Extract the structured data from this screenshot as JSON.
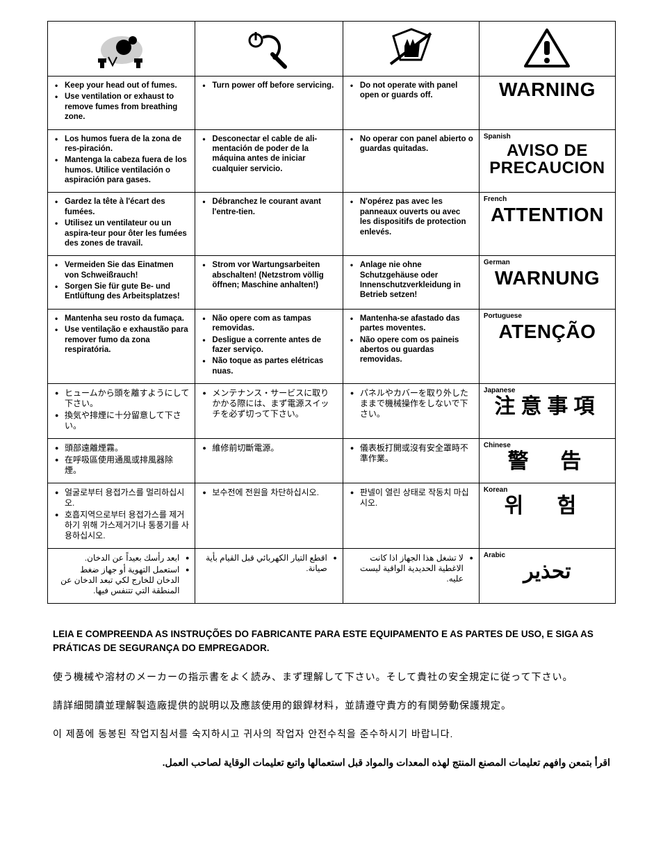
{
  "icons": {
    "fumes": "fumes-head-icon",
    "service": "power-off-service-icon",
    "panel": "hand-guard-icon",
    "warning": "warning-triangle-icon"
  },
  "rows": [
    {
      "lang_tag": "",
      "cjk": false,
      "ar": false,
      "col1": [
        "Keep your head out of fumes.",
        "Use ventilation or exhaust to remove fumes from breathing zone."
      ],
      "col2": [
        "Turn power off before servicing."
      ],
      "col3": [
        "Do not operate with panel open or guards off."
      ],
      "warn_class": "lg",
      "warn_text": "WARNING"
    },
    {
      "lang_tag": "Spanish",
      "cjk": false,
      "ar": false,
      "col1": [
        "Los humos fuera de la zona de res-piración.",
        "Mantenga la cabeza fuera de los humos. Utilice ventilación o aspiración para gases."
      ],
      "col2": [
        "Desconectar el cable de ali-mentación de poder de la máquina antes de iniciar cualquier servicio."
      ],
      "col3": [
        "No operar con panel abierto o guardas quitadas."
      ],
      "warn_class": "md",
      "warn_text": "AVISO DE PRECAUCION"
    },
    {
      "lang_tag": "French",
      "cjk": false,
      "ar": false,
      "col1": [
        "Gardez la tête à l'écart des fumées.",
        "Utilisez un ventilateur ou un aspira-teur pour ôter les fumées des zones de travail."
      ],
      "col2": [
        "Débranchez le courant avant l'entre-tien."
      ],
      "col3": [
        "N'opérez pas avec les panneaux ouverts ou avec les dispositifs de protection enlevés."
      ],
      "warn_class": "lg",
      "warn_text": "ATTENTION"
    },
    {
      "lang_tag": "German",
      "cjk": false,
      "ar": false,
      "col1": [
        "Vermeiden Sie das Einatmen von Schweißrauch!",
        "Sorgen Sie für gute Be- und Entlüftung des Arbeitsplatzes!"
      ],
      "col2": [
        "Strom vor Wartungsarbeiten abschalten! (Netzstrom völlig öffnen; Maschine anhalten!)"
      ],
      "col3": [
        "Anlage nie ohne Schutzgehäuse oder Innenschutzverkleidung in Betrieb setzen!"
      ],
      "warn_class": "lg",
      "warn_text": "WARNUNG"
    },
    {
      "lang_tag": "Portuguese",
      "cjk": false,
      "ar": false,
      "col1": [
        "Mantenha seu rosto da fumaça.",
        "Use ventilação e exhaustão para remover fumo da zona respiratória."
      ],
      "col2": [
        "Não opere com as tampas removidas.",
        "Desligue a corrente antes de fazer serviço.",
        "Não toque as partes elétricas nuas."
      ],
      "col3": [
        "Mantenha-se afastado das partes moventes.",
        "Não opere com os paineis abertos ou guardas removidas."
      ],
      "warn_class": "lg",
      "warn_text": "ATENÇÃO"
    },
    {
      "lang_tag": "Japanese",
      "cjk": true,
      "ar": false,
      "col1": [
        "ヒュームから頭を離すようにして下さい。",
        "換気や排煙に十分留意して下さい。"
      ],
      "col2": [
        "メンテナンス・サービスに取りかかる際には、まず電源スイッチを必ず切って下さい。"
      ],
      "col3": [
        "パネルやカバーを取り外したままで機械操作をしないで下さい。"
      ],
      "warn_class": "cjk",
      "warn_text": "注意事項"
    },
    {
      "lang_tag": "Chinese",
      "cjk": true,
      "ar": false,
      "col1": [
        "頭部遠離煙霧。",
        "在呼吸區使用通風或排風器除煙。"
      ],
      "col2": [
        "維修前切斷電源。"
      ],
      "col3": [
        "儀表板打開或沒有安全罩時不準作業。"
      ],
      "warn_class": "cjk",
      "warn_text": "警　告"
    },
    {
      "lang_tag": "Korean",
      "cjk": true,
      "ar": false,
      "col1": [
        "얼굴로부터 용접가스를 멀리하십시오.",
        "호흡지역으로부터 용접가스를 제거하기 위해 가스제거기나 통풍기를 사용하십시오."
      ],
      "col2": [
        "보수전에 전원을 차단하십시오."
      ],
      "col3": [
        "판넬이 열린 상태로 작동치 마십시오."
      ],
      "warn_class": "ko",
      "warn_text": "위 험"
    },
    {
      "lang_tag": "Arabic",
      "cjk": false,
      "ar": true,
      "col1": [
        "ابعد رأسك بعيداً عن الدخان.",
        "استعمل التهوية أو جهاز ضغط الدخان للخارج لكي تبعد الدخان عن المنطقة التي تتنفس فيها."
      ],
      "col2": [
        "اقطع التيار الكهربائي قبل القيام بأية صيانة."
      ],
      "col3": [
        "لا تشغل هذا الجهاز اذا كانت الاغطية الحديدية الواقية ليست عليه."
      ],
      "warn_class": "ar",
      "warn_text": "تحذير"
    }
  ],
  "footer": [
    {
      "class": "",
      "text": "LEIA E COMPREENDA AS INSTRUÇÕES DO FABRICANTE PARA ESTE EQUIPAMENTO E AS PARTES DE USO, E SIGA AS PRÁTICAS DE SEGURANÇA DO EMPREGADOR."
    },
    {
      "class": "cjk",
      "text": "使う機械や溶材のメーカーの指示書をよく読み、まず理解して下さい。そして貴社の安全規定に従って下さい。"
    },
    {
      "class": "cjk",
      "text": "請詳細閱讀並理解製造廠提供的説明以及應該使用的銀銲材料，並請遵守貴方的有関勞動保護規定。"
    },
    {
      "class": "cjk",
      "text": "이 제품에 동봉된 작업지침서를 숙지하시고 귀사의 작업자 안전수칙을 준수하시기 바랍니다."
    },
    {
      "class": "ar",
      "text": "اقرأ بتمعن وافهم تعليمات المصنع المنتج لهذه المعدات والمواد قبل استعمالها واتبع تعليمات الوقاية لصاحب العمل."
    }
  ]
}
